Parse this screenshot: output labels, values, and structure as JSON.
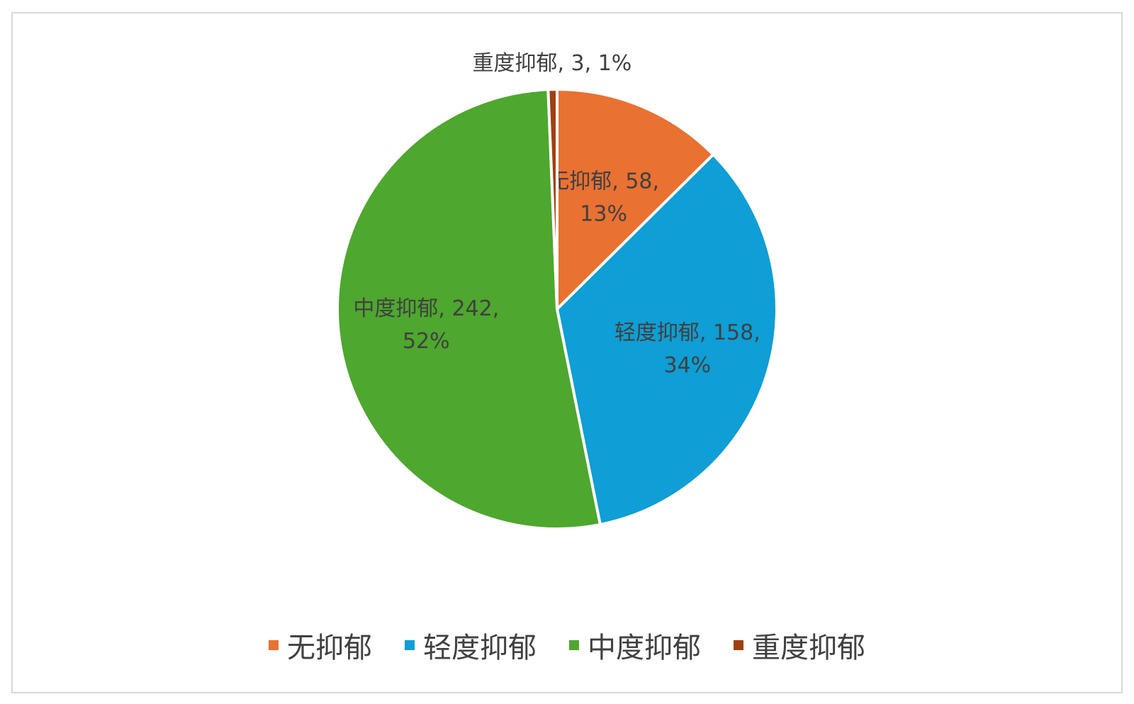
{
  "chart_data": {
    "type": "pie",
    "categories": [
      "无抑郁",
      "轻度抑郁",
      "中度抑郁",
      "重度抑郁"
    ],
    "values": [
      58,
      158,
      242,
      3
    ],
    "percents": [
      "13%",
      "34%",
      "52%",
      "1%"
    ],
    "colors": [
      "#E97132",
      "#0F9ED5",
      "#4EA72E",
      "#A0400F"
    ],
    "data_labels": [
      [
        "无抑郁, 58,",
        "13%"
      ],
      [
        "轻度抑郁, 158,",
        "34%"
      ],
      [
        "中度抑郁, 242,",
        "52%"
      ],
      [
        "重度抑郁, 3, 1%"
      ]
    ],
    "legend_position": "bottom",
    "title": ""
  }
}
